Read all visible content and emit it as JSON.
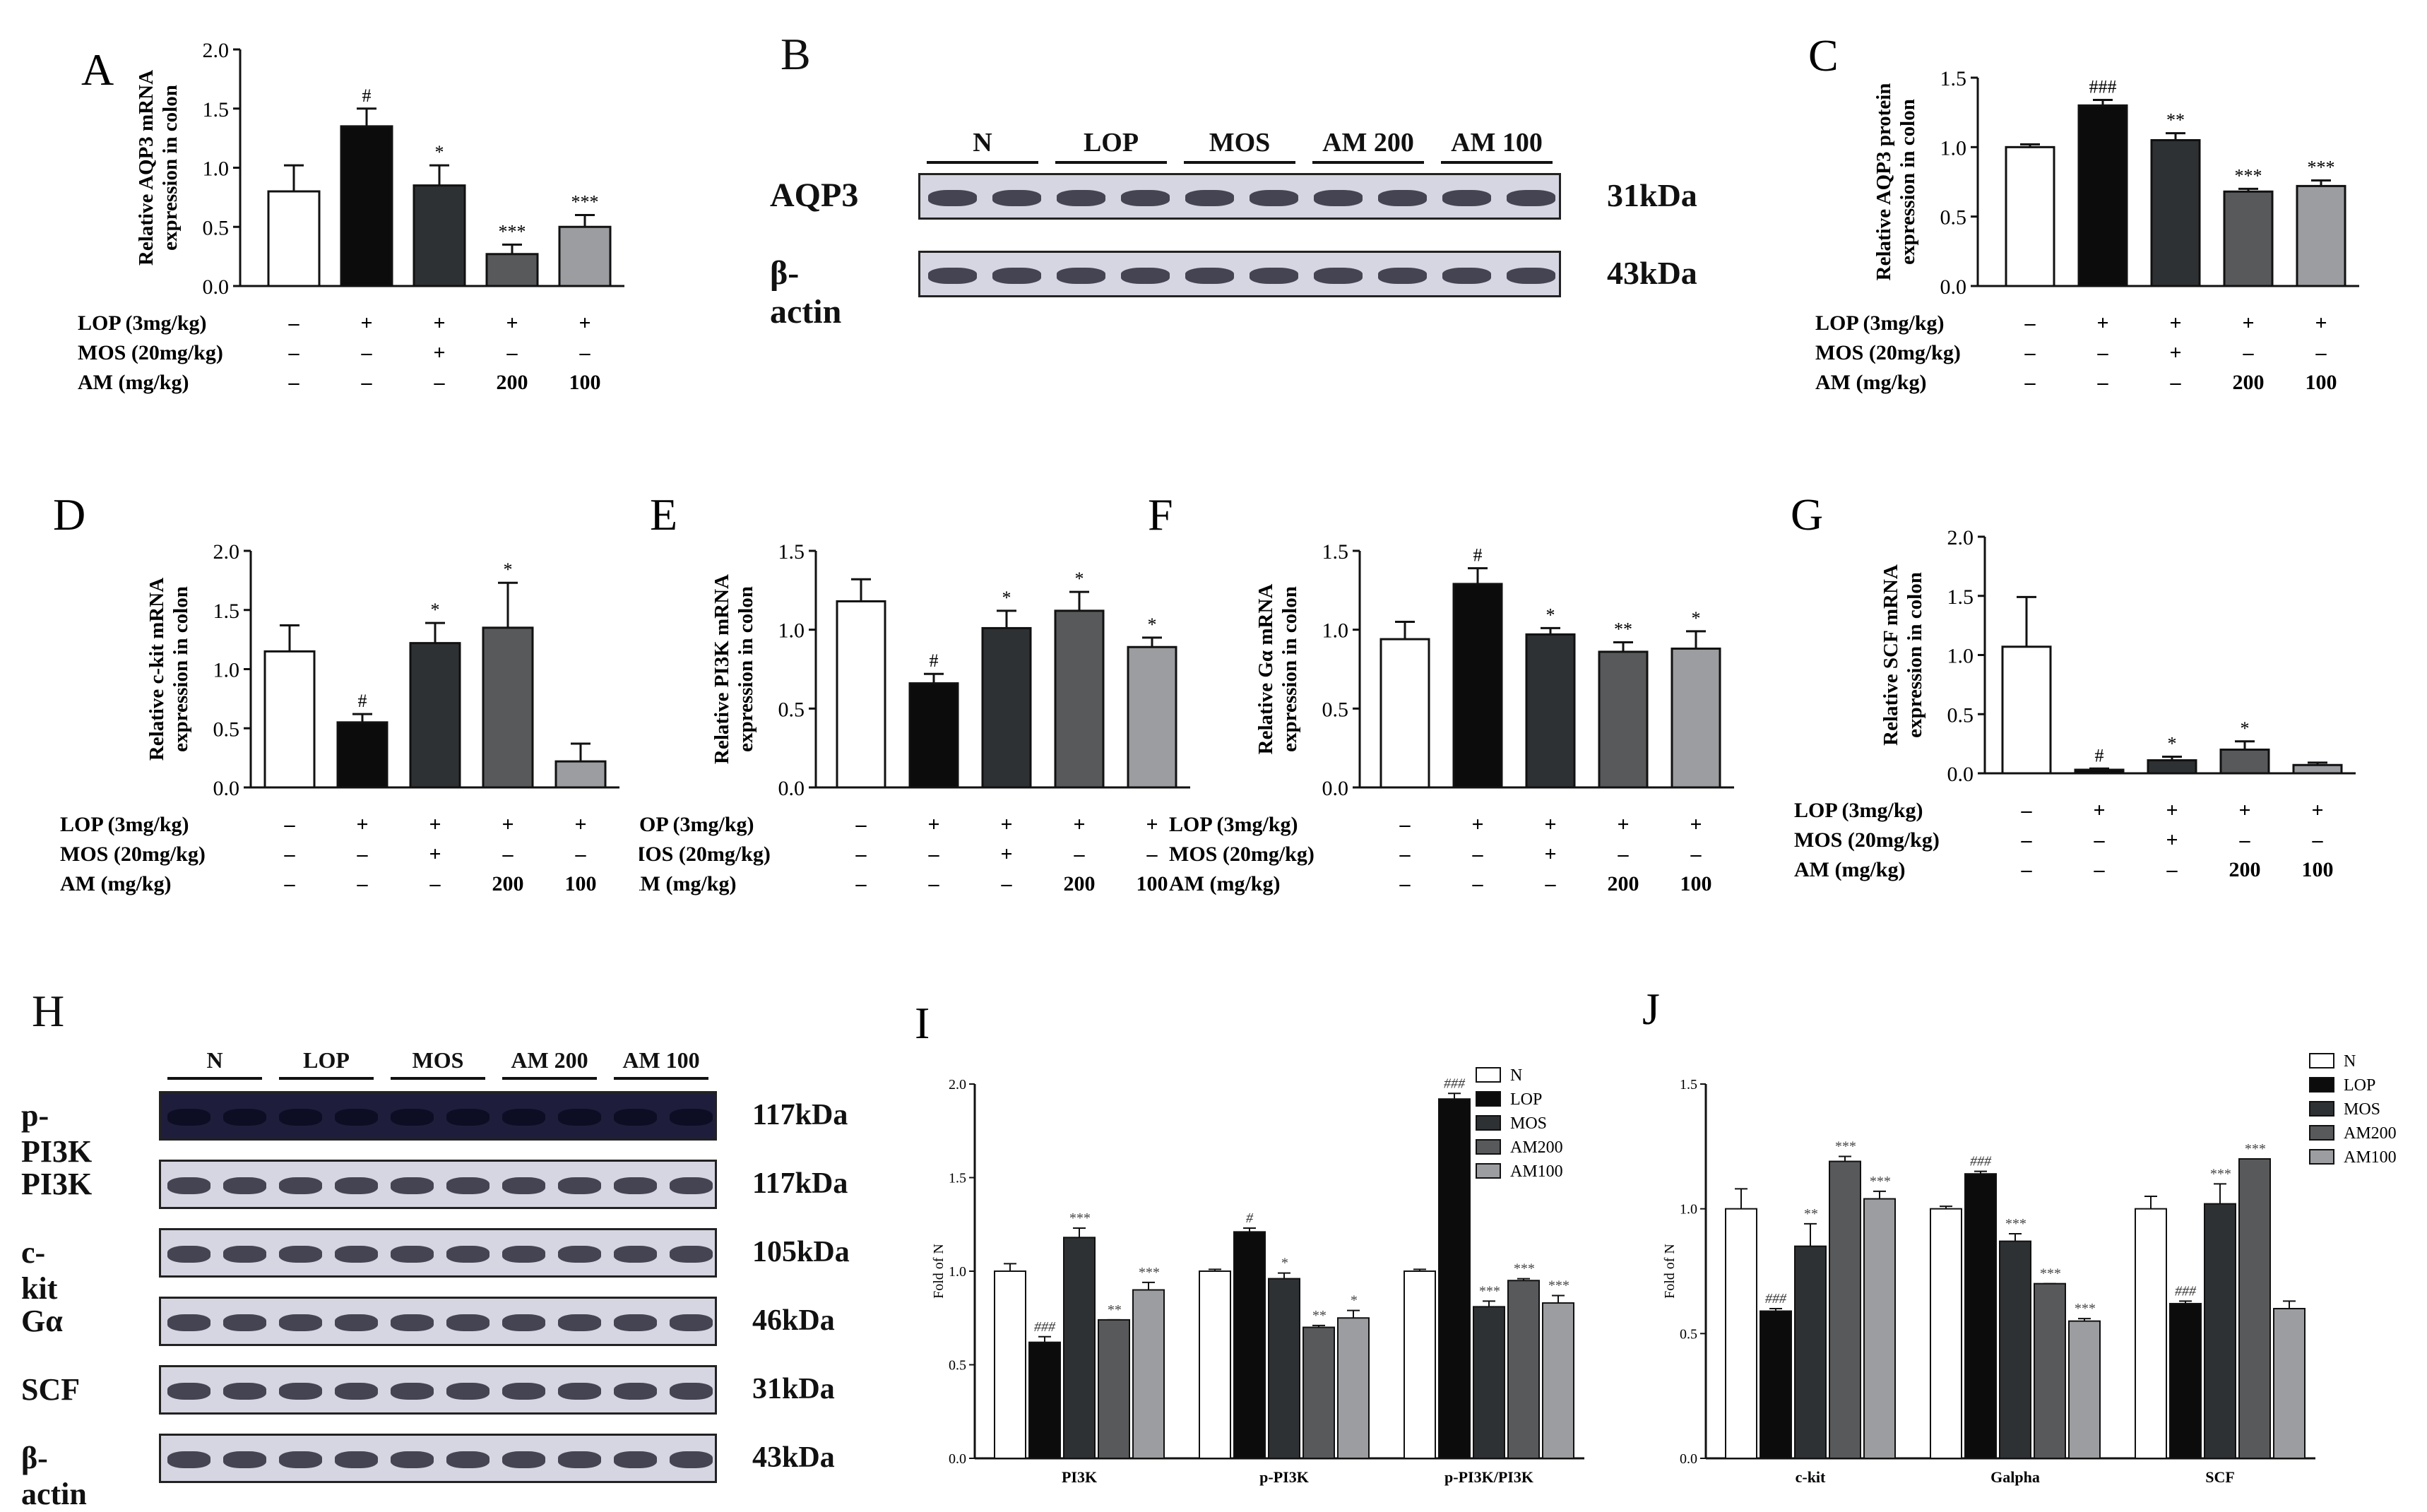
{
  "colors": {
    "N": "#ffffff",
    "LOP": "#0c0c0c",
    "MOS": "#2e3133",
    "AM200": "#57595b",
    "AM100": "#9b9da0"
  },
  "treat_labels": [
    "LOP (3mg/kg)",
    "MOS (20mg/kg)",
    "AM (mg/kg)"
  ],
  "treat_values": [
    [
      "–",
      "+",
      "+",
      "+",
      "+"
    ],
    [
      "–",
      "–",
      "+",
      "–",
      "–"
    ],
    [
      "–",
      "–",
      "–",
      "200",
      "100"
    ]
  ],
  "western_B": {
    "letter": "B",
    "groups": [
      "N",
      "LOP",
      "MOS",
      "AM 200",
      "AM 100"
    ],
    "rows": [
      {
        "label": "AQP3",
        "kda": "31kDa"
      },
      {
        "label": "β-actin",
        "kda": "43kDa"
      }
    ]
  },
  "western_H": {
    "letter": "H",
    "groups": [
      "N",
      "LOP",
      "MOS",
      "AM 200",
      "AM 100"
    ],
    "rows": [
      {
        "label": "p-PI3K",
        "kda": "117kDa"
      },
      {
        "label": "PI3K",
        "kda": "117kDa"
      },
      {
        "label": "c-kit",
        "kda": "105kDa"
      },
      {
        "label": "Gα",
        "kda": "46kDa"
      },
      {
        "label": "SCF",
        "kda": "31kDa"
      },
      {
        "label": "β-actin",
        "kda": "43kDa"
      }
    ]
  },
  "chart_data": [
    {
      "id": "A",
      "type": "bar",
      "ylabel": [
        "Relative AQP3 mRNA",
        "expression in colon"
      ],
      "ylim": [
        0,
        2.0
      ],
      "ticks": [
        "0.0",
        "0.5",
        "1.0",
        "1.5",
        "2.0"
      ],
      "categories": [
        "N",
        "LOP",
        "MOS",
        "AM200",
        "AM100"
      ],
      "values": [
        0.8,
        1.35,
        0.85,
        0.27,
        0.5
      ],
      "errors": [
        0.22,
        0.15,
        0.17,
        0.08,
        0.1
      ],
      "sig": [
        "",
        "#",
        "*",
        "***",
        "***"
      ]
    },
    {
      "id": "C",
      "type": "bar",
      "ylabel": [
        "Relative AQP3 protein",
        "expression in colon"
      ],
      "ylim": [
        0,
        1.5
      ],
      "ticks": [
        "0.0",
        "0.5",
        "1.0",
        "1.5"
      ],
      "categories": [
        "N",
        "LOP",
        "MOS",
        "AM200",
        "AM100"
      ],
      "values": [
        1.0,
        1.3,
        1.05,
        0.68,
        0.72
      ],
      "errors": [
        0.02,
        0.04,
        0.05,
        0.02,
        0.04
      ],
      "sig": [
        "",
        "###",
        "**",
        "***",
        "***"
      ]
    },
    {
      "id": "D",
      "type": "bar",
      "ylabel": [
        "Relative c-kit mRNA",
        "expression in colon"
      ],
      "ylim": [
        0,
        2.0
      ],
      "ticks": [
        "0.0",
        "0.5",
        "1.0",
        "1.5",
        "2.0"
      ],
      "categories": [
        "N",
        "LOP",
        "MOS",
        "AM200",
        "AM100"
      ],
      "values": [
        1.15,
        0.55,
        1.22,
        1.35,
        0.22
      ],
      "errors": [
        0.22,
        0.07,
        0.17,
        0.38,
        0.15
      ],
      "sig": [
        "",
        "#",
        "*",
        "*",
        ""
      ]
    },
    {
      "id": "E",
      "type": "bar",
      "ylabel": [
        "Relative PI3K mRNA",
        "expression in colon"
      ],
      "ylim": [
        0,
        1.5
      ],
      "ticks": [
        "0.0",
        "0.5",
        "1.0",
        "1.5"
      ],
      "categories": [
        "N",
        "LOP",
        "MOS",
        "AM200",
        "AM100"
      ],
      "values": [
        1.18,
        0.66,
        1.01,
        1.12,
        0.89
      ],
      "errors": [
        0.14,
        0.06,
        0.11,
        0.12,
        0.06
      ],
      "sig": [
        "",
        "#",
        "*",
        "*",
        "*"
      ]
    },
    {
      "id": "F",
      "type": "bar",
      "ylabel": [
        "Relative Gα mRNA",
        "expression in colon"
      ],
      "ylim": [
        0,
        1.5
      ],
      "ticks": [
        "0.0",
        "0.5",
        "1.0",
        "1.5"
      ],
      "categories": [
        "N",
        "LOP",
        "MOS",
        "AM200",
        "AM100"
      ],
      "values": [
        0.94,
        1.29,
        0.97,
        0.86,
        0.88
      ],
      "errors": [
        0.11,
        0.1,
        0.04,
        0.06,
        0.11
      ],
      "sig": [
        "",
        "#",
        "*",
        "**",
        "*"
      ]
    },
    {
      "id": "G",
      "type": "bar",
      "ylabel": [
        "Relative SCF mRNA",
        "expression in colon"
      ],
      "ylim": [
        0,
        2.0
      ],
      "ticks": [
        "0.0",
        "0.5",
        "1.0",
        "1.5",
        "2.0"
      ],
      "categories": [
        "N",
        "LOP",
        "MOS",
        "AM200",
        "AM100"
      ],
      "values": [
        1.07,
        0.03,
        0.11,
        0.2,
        0.07
      ],
      "errors": [
        0.42,
        0.01,
        0.03,
        0.07,
        0.02
      ],
      "sig": [
        "",
        "#",
        "*",
        "*",
        ""
      ]
    },
    {
      "id": "I",
      "type": "bar",
      "ylabel": [
        "Fold of N"
      ],
      "ylim": [
        0,
        2.0
      ],
      "ticks": [
        "0.0",
        "0.5",
        "1.0",
        "1.5",
        "2.0"
      ],
      "categories": [
        "PI3K",
        "p-PI3K",
        "p-PI3K/PI3K"
      ],
      "legend": [
        "N",
        "LOP",
        "MOS",
        "AM200",
        "AM100"
      ],
      "series": [
        {
          "name": "N",
          "values": [
            1.0,
            1.0,
            1.0
          ],
          "errors": [
            0.04,
            0.01,
            0.01
          ],
          "sig": [
            "",
            "",
            ""
          ]
        },
        {
          "name": "LOP",
          "values": [
            0.62,
            1.21,
            1.92
          ],
          "errors": [
            0.03,
            0.02,
            0.03
          ],
          "sig": [
            "###",
            "#",
            "###"
          ]
        },
        {
          "name": "MOS",
          "values": [
            1.18,
            0.96,
            0.81
          ],
          "errors": [
            0.05,
            0.03,
            0.03
          ],
          "sig": [
            "***",
            "*",
            "***"
          ]
        },
        {
          "name": "AM200",
          "values": [
            0.74,
            0.7,
            0.95
          ],
          "errors": [
            0.0,
            0.01,
            0.01
          ],
          "sig": [
            "**",
            "**",
            "***"
          ]
        },
        {
          "name": "AM100",
          "values": [
            0.9,
            0.75,
            0.83
          ],
          "errors": [
            0.04,
            0.04,
            0.04
          ],
          "sig": [
            "***",
            "*",
            "***"
          ]
        }
      ]
    },
    {
      "id": "J",
      "type": "bar",
      "ylabel": [
        "Fold of N"
      ],
      "ylim": [
        0,
        1.5
      ],
      "ticks": [
        "0.0",
        "0.5",
        "1.0",
        "1.5"
      ],
      "categories": [
        "c-kit",
        "Galpha",
        "SCF"
      ],
      "legend": [
        "N",
        "LOP",
        "MOS",
        "AM200",
        "AM100"
      ],
      "series": [
        {
          "name": "N",
          "values": [
            1.0,
            1.0,
            1.0
          ],
          "errors": [
            0.08,
            0.01,
            0.05
          ],
          "sig": [
            "",
            "",
            ""
          ]
        },
        {
          "name": "LOP",
          "values": [
            0.59,
            1.14,
            0.62
          ],
          "errors": [
            0.01,
            0.01,
            0.01
          ],
          "sig": [
            "###",
            "###",
            "###"
          ]
        },
        {
          "name": "MOS",
          "values": [
            0.85,
            0.87,
            1.02
          ],
          "errors": [
            0.09,
            0.03,
            0.08
          ],
          "sig": [
            "**",
            "***",
            "***"
          ]
        },
        {
          "name": "AM200",
          "values": [
            1.19,
            0.7,
            1.2
          ],
          "errors": [
            0.02,
            0.0,
            0.0
          ],
          "sig": [
            "***",
            "***",
            "***"
          ]
        },
        {
          "name": "AM100",
          "values": [
            1.04,
            0.55,
            0.6
          ],
          "errors": [
            0.03,
            0.01,
            0.03
          ],
          "sig": [
            "***",
            "***",
            ""
          ]
        }
      ]
    }
  ]
}
